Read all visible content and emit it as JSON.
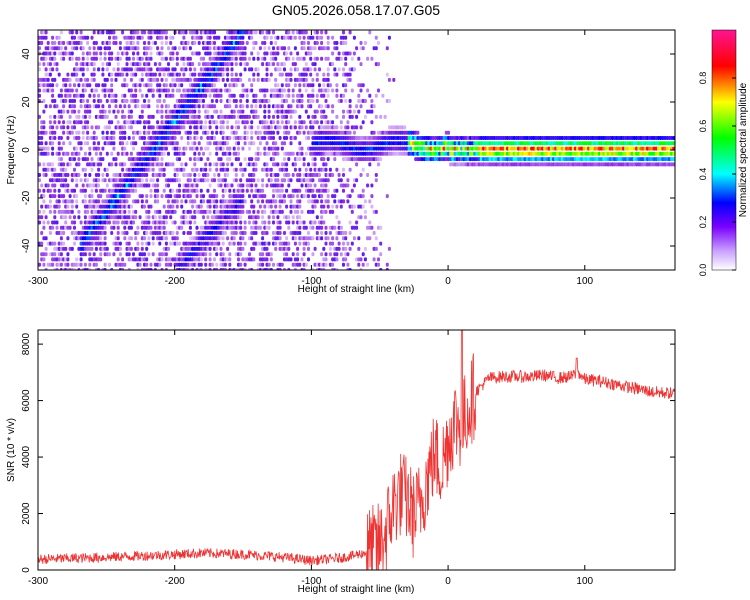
{
  "title": "GN05.2026.058.17.07.G05",
  "chart_data": [
    {
      "type": "heatmap",
      "xlabel": "Height of straight line (km)",
      "ylabel": "Frequency (Hz)",
      "xlim": [
        -300,
        166
      ],
      "ylim": [
        -50,
        50
      ],
      "xticks": [
        -300,
        -200,
        -100,
        0,
        100
      ],
      "yticks": [
        -40,
        -20,
        0,
        20,
        40
      ],
      "colorbar": {
        "label": "Normalized spectral amplitude",
        "range": [
          0,
          1
        ],
        "ticks": [
          0.0,
          0.2,
          0.4,
          0.6,
          0.8
        ],
        "colormap": [
          "#ffffff",
          "#8a2be2",
          "#0000ff",
          "#00ffff",
          "#00ff00",
          "#ffff00",
          "#ff0000",
          "#ff1493"
        ]
      },
      "features": [
        {
          "name": "diagonal band",
          "x": [
            -270,
            -150
          ],
          "y": [
            -40,
            50
          ],
          "amplitude": 0.35
        },
        {
          "name": "second diagonal",
          "x": [
            -200,
            -150
          ],
          "y": [
            -50,
            -20
          ],
          "amplitude": 0.25
        },
        {
          "name": "carrier line",
          "x": [
            -100,
            166
          ],
          "y": [
            -2,
            5
          ],
          "amplitude": 0.95
        }
      ]
    },
    {
      "type": "line",
      "xlabel": "Height of straight line (km)",
      "ylabel": "SNR (10 * v/v)",
      "xlim": [
        -300,
        166
      ],
      "ylim": [
        0,
        8500
      ],
      "xticks": [
        -300,
        -200,
        -100,
        0,
        100
      ],
      "yticks": [
        0,
        2000,
        4000,
        6000,
        8000
      ],
      "color": "#ee3333",
      "series": [
        {
          "x": [
            -300,
            -270,
            -240,
            -210,
            -180,
            -150,
            -120,
            -100,
            -80,
            -70,
            -60,
            -50,
            -45,
            -40,
            -35,
            -30,
            -25,
            -20,
            -15,
            -10,
            -5,
            0,
            5,
            10,
            15,
            20,
            25,
            30,
            40,
            50,
            60,
            70,
            80,
            90,
            95,
            100,
            110,
            120,
            130,
            140,
            150,
            166
          ],
          "y": [
            380,
            420,
            470,
            530,
            600,
            560,
            450,
            330,
            420,
            500,
            620,
            850,
            1400,
            2300,
            2700,
            2500,
            1900,
            2400,
            3300,
            4100,
            3600,
            4600,
            5300,
            5100,
            5800,
            6300,
            6550,
            6800,
            6850,
            6850,
            6850,
            6900,
            6800,
            6850,
            7000,
            6750,
            6700,
            6600,
            6500,
            6400,
            6300,
            6250
          ]
        }
      ],
      "annotations": [
        {
          "x": 10,
          "y": 8500,
          "note": "spike"
        },
        {
          "x": 94,
          "y": 7500,
          "note": "spike"
        }
      ]
    }
  ]
}
